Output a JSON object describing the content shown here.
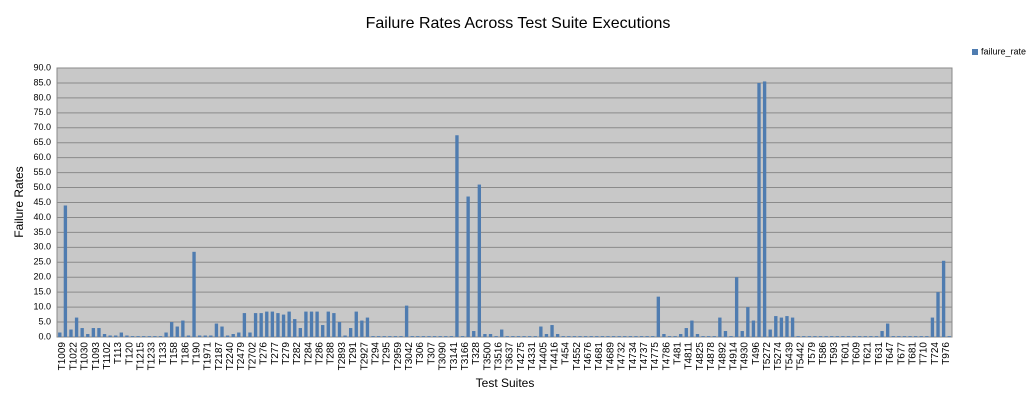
{
  "chart_data": {
    "type": "bar",
    "title": "Failure Rates Across Test Suite Executions",
    "x_label": "Test Suites",
    "y_label": "Failure Rates",
    "legend_position": "upper right",
    "grid": true,
    "categories": [
      "T1009",
      null,
      "T1022",
      null,
      "T1030",
      null,
      "T1093",
      null,
      "T1102",
      null,
      "T113",
      null,
      "T120",
      null,
      "T1215",
      null,
      "T1233",
      null,
      "T133",
      null,
      "T158",
      null,
      "T186",
      null,
      "T190",
      null,
      "T1971",
      null,
      "T2187",
      null,
      "T2240",
      null,
      "T2479",
      null,
      "T2702",
      null,
      "T276",
      null,
      "T277",
      null,
      "T279",
      null,
      "T282",
      null,
      "T284",
      null,
      "T286",
      null,
      "T288",
      null,
      "T2893",
      null,
      "T291",
      null,
      "T2927",
      null,
      "T294",
      null,
      "T295",
      null,
      "T2959",
      null,
      "T3042",
      null,
      "T306",
      null,
      "T307",
      null,
      "T3090",
      null,
      "T3141",
      null,
      "T3166",
      null,
      "T328",
      null,
      "T3500",
      null,
      "T3516",
      null,
      "T3637",
      null,
      "T4275",
      null,
      "T4331",
      null,
      "T4405",
      null,
      "T4416",
      null,
      "T454",
      null,
      "T4552",
      null,
      "T4676",
      null,
      "T4681",
      null,
      "T4689",
      null,
      "T4732",
      null,
      "T4734",
      null,
      "T4737",
      null,
      "T4775",
      null,
      "T4786",
      null,
      "T481",
      null,
      "T4811",
      null,
      "T4825",
      null,
      "T4878",
      null,
      "T4892",
      null,
      "T4914",
      null,
      "T4930",
      null,
      "T496",
      null,
      "T5272",
      null,
      "T5274",
      null,
      "T5439",
      null,
      "T5442",
      null,
      "T579",
      null,
      "T586",
      null,
      "T593",
      null,
      "T601",
      null,
      "T609",
      null,
      "T621",
      null,
      "T631",
      null,
      "T647",
      null,
      "T677",
      null,
      "T681",
      null,
      "T710",
      null,
      "T724",
      null,
      "T976",
      null
    ],
    "series": [
      {
        "name": "failure_rate",
        "color": "#4f7cb0",
        "values": [
          1.5,
          44,
          2.5,
          6.5,
          3,
          1,
          3,
          3,
          1,
          0.5,
          0.5,
          1.5,
          0.5,
          0.3,
          0.3,
          0.3,
          0.3,
          0.3,
          0.3,
          1.5,
          5,
          3.5,
          5.5,
          0.5,
          28.5,
          0.5,
          0.5,
          0.5,
          4.5,
          3.5,
          0.5,
          1,
          1.5,
          8,
          1.5,
          8,
          8,
          8.5,
          8.5,
          8,
          7.5,
          8.5,
          6,
          3,
          8.5,
          8.5,
          8.5,
          4,
          8.5,
          8,
          5,
          0.5,
          3,
          8.5,
          5.5,
          6.5,
          0.3,
          0.3,
          0.3,
          0.3,
          0.3,
          0.3,
          10.5,
          0.3,
          0.3,
          0.3,
          0.3,
          0.3,
          0.3,
          0.3,
          0.3,
          67.5,
          0.3,
          47,
          2,
          51,
          1,
          1,
          0.3,
          2.5,
          0.3,
          0.3,
          0.3,
          0.3,
          0.3,
          0.3,
          3.5,
          1,
          4,
          1,
          0.3,
          0.3,
          0.3,
          0.3,
          0.3,
          0.3,
          0.3,
          0.3,
          0.3,
          0.3,
          0.3,
          0.3,
          0.3,
          0.3,
          0.3,
          0.3,
          0.3,
          13.5,
          1,
          0.3,
          0.3,
          1,
          3,
          5.5,
          1,
          0.3,
          0.3,
          0.3,
          6.5,
          2,
          0.3,
          20,
          2,
          10,
          5.5,
          85,
          85.5,
          2.5,
          7,
          6.5,
          7,
          6.5,
          0.3,
          0.3,
          0.3,
          0.3,
          0.3,
          0.3,
          0.3,
          0.3,
          0.3,
          0.3,
          0.3,
          0.3,
          0.3,
          0.3,
          0.3,
          2,
          4.5,
          0.3,
          0.3,
          0.3,
          0.3,
          0.3,
          0.3,
          0.3,
          6.5,
          15,
          25.5,
          0.3
        ]
      }
    ],
    "ylim": [
      0,
      90
    ],
    "yticks": [
      {
        "value": 0,
        "label": "0.0"
      },
      {
        "value": 5,
        "label": "5.0"
      },
      {
        "value": 10,
        "label": "10.0"
      },
      {
        "value": 15,
        "label": "15.0"
      },
      {
        "value": 20,
        "label": "20.0"
      },
      {
        "value": 25,
        "label": "25.0"
      },
      {
        "value": 30,
        "label": "30.0"
      },
      {
        "value": 35,
        "label": "35.0"
      },
      {
        "value": 40,
        "label": "40.0"
      },
      {
        "value": 45,
        "label": "45.0"
      },
      {
        "value": 50,
        "label": "50.0"
      },
      {
        "value": 55,
        "label": "55.0"
      },
      {
        "value": 60,
        "label": "60.0"
      },
      {
        "value": 65,
        "label": "65.0"
      },
      {
        "value": 70,
        "label": "70.0"
      },
      {
        "value": 75,
        "label": "75.0"
      },
      {
        "value": 80,
        "label": "80.0"
      },
      {
        "value": 85,
        "label": "85.0"
      },
      {
        "value": 90,
        "label": "90.0"
      }
    ]
  }
}
